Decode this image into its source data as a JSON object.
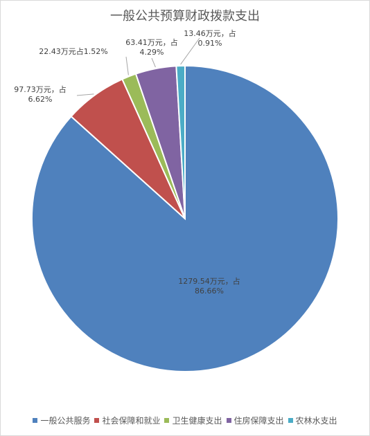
{
  "chart_data": {
    "type": "pie",
    "title": "一般公共预算财政拨款支出",
    "categories": [
      "一般公共服务",
      "社会保障和就业",
      "卫生健康支出",
      "住房保障支出",
      "农林水支出"
    ],
    "values": [
      1279.54,
      97.73,
      22.43,
      63.41,
      13.46
    ],
    "percent_labels": [
      "86.66%",
      "6.62%",
      "1.52%",
      "4.29%",
      "0.91%"
    ],
    "data_labels": [
      [
        "1279.54万元，占",
        "86.66%"
      ],
      [
        "97.73万元，占",
        "6.62%"
      ],
      [
        "22.43万元占1.52%"
      ],
      [
        "63.41万元，占",
        "4.29%"
      ],
      [
        "13.46万元，占",
        "0.91%"
      ]
    ],
    "colors": [
      "#4f81bd",
      "#c0504d",
      "#9bbb59",
      "#8064a2",
      "#4bacc6"
    ],
    "start_angle": "12 o'clock",
    "direction": "clockwise",
    "legend_position": "bottom"
  }
}
